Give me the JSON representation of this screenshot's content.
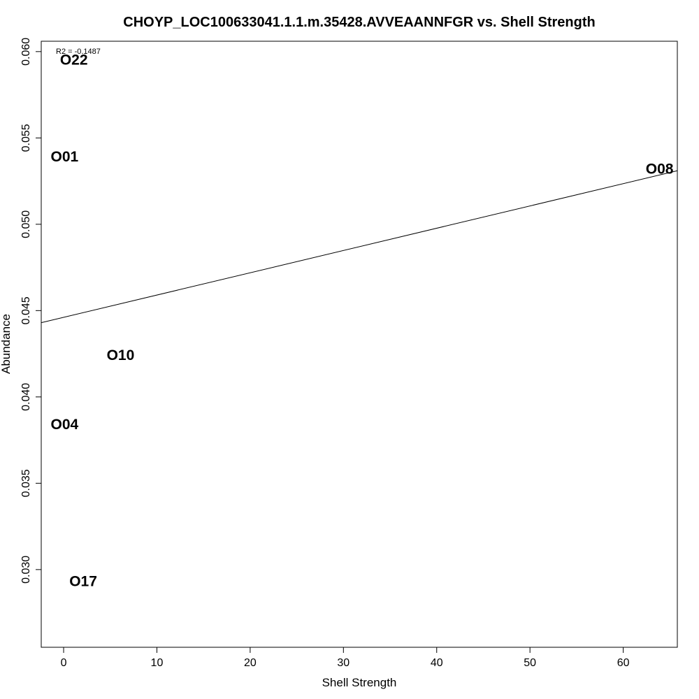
{
  "chart_data": {
    "type": "scatter",
    "title": "CHOYP_LOC100633041.1.1.m.35428.AVVEAANNFGR vs. Shell Strength",
    "xlabel": "Shell Strength",
    "ylabel": "Abundance",
    "annotation": "R2 = -0.1487",
    "xlim": [
      -2.4,
      65.8
    ],
    "ylim": [
      0.0255,
      0.0606
    ],
    "xticks": [
      0,
      10,
      20,
      30,
      40,
      50,
      60
    ],
    "yticks": [
      0.03,
      0.035,
      0.04,
      0.045,
      0.05,
      0.055,
      0.06
    ],
    "ytick_labels": [
      "0.030",
      "0.035",
      "0.040",
      "0.045",
      "0.050",
      "0.055",
      "0.060"
    ],
    "points": [
      {
        "label": "O22",
        "x": 1.1,
        "y": 0.0595
      },
      {
        "label": "O01",
        "x": 0.1,
        "y": 0.0539
      },
      {
        "label": "O08",
        "x": 63.9,
        "y": 0.0532
      },
      {
        "label": "O10",
        "x": 6.1,
        "y": 0.0424
      },
      {
        "label": "O04",
        "x": 0.1,
        "y": 0.0384
      },
      {
        "label": "O17",
        "x": 2.1,
        "y": 0.0293
      }
    ],
    "fit_line": {
      "x": [
        -2.4,
        65.8
      ],
      "y": [
        0.0443,
        0.0531
      ]
    },
    "grid": false,
    "legend": "none"
  }
}
